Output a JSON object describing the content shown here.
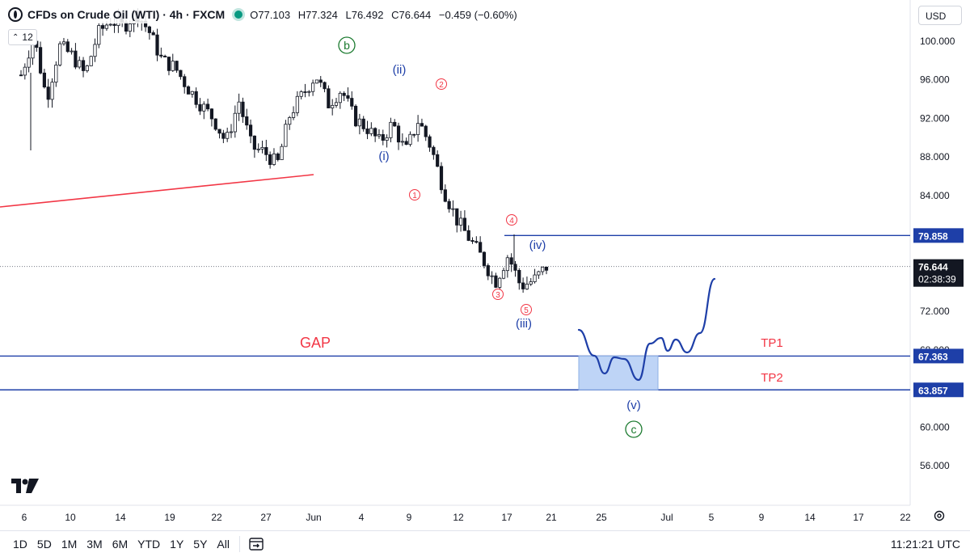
{
  "header": {
    "symbol": "CFDs on Crude Oil (WTI) · 4h · FXCM",
    "open": "O77.103",
    "high": "H77.324",
    "low": "L76.492",
    "close": "C76.644",
    "change": "−0.459 (−0.60%)",
    "indicator_value": "12"
  },
  "currency_label": "USD",
  "colors": {
    "bull": "#089981",
    "bear": "#131722",
    "blue": "#1e3fa8",
    "red": "#f23645",
    "green": "#1b7a2f",
    "zone": "#b3cdf5"
  },
  "icons": [
    "tradingview-logo-icon",
    "chevron-up-down-icon",
    "calendar-range-icon",
    "gear-icon"
  ],
  "chart_data": {
    "type": "candlestick",
    "timeframe": "4h",
    "ylim": [
      52.0,
      103.5
    ],
    "yticks": [
      "100.000",
      "96.000",
      "92.000",
      "88.000",
      "84.000",
      "72.000",
      "68.000",
      "64.000",
      "60.000",
      "56.000"
    ],
    "xticks": [
      "6",
      "10",
      "14",
      "19",
      "22",
      "27",
      "Jun",
      "4",
      "9",
      "12",
      "17",
      "21",
      "25",
      "Jul",
      "5",
      "9",
      "14",
      "17",
      "22"
    ],
    "price_labels": [
      {
        "text": "79.858",
        "price": 79.858,
        "style": "blue"
      },
      {
        "text": "76.644",
        "sub": "02:38:39",
        "price": 76.644,
        "style": "black"
      },
      {
        "text": "67.363",
        "price": 67.363,
        "style": "blue"
      },
      {
        "text": "63.857",
        "price": 63.857,
        "style": "blue"
      }
    ],
    "horizontal_levels": [
      {
        "price": 79.858,
        "color": "blue",
        "from_day": 39.0
      },
      {
        "price": 67.363,
        "color": "blue",
        "from_day": 0
      },
      {
        "price": 63.857,
        "color": "blue",
        "from_day": 0
      },
      {
        "price": 76.644,
        "color": "dotted",
        "from_day": 0
      }
    ],
    "trendline": {
      "color": "red",
      "from": [
        0,
        82.8
      ],
      "to": [
        19.5,
        86.3
      ]
    },
    "target_zone": {
      "from_day": 48.5,
      "to_day": 57.0,
      "price_top": 67.363,
      "price_bottom": 63.857
    },
    "labels": {
      "gap": "GAP",
      "tp1": "TP1",
      "tp2": "TP2",
      "waves_circled_green": [
        "b",
        "c"
      ],
      "waves_blue": [
        "(i)",
        "(ii)",
        "(iii)",
        "(iv)",
        "(v)"
      ],
      "waves_red_circled": [
        "1",
        "2",
        "3",
        "4",
        "5"
      ]
    },
    "price_path": [
      [
        0,
        96.5
      ],
      [
        1.5,
        100.5
      ],
      [
        3,
        94.0
      ],
      [
        4.5,
        99.5
      ],
      [
        6,
        98.5
      ],
      [
        7.5,
        96.5
      ],
      [
        9,
        100.8
      ],
      [
        10.5,
        102.2
      ],
      [
        12,
        101.5
      ],
      [
        13.5,
        103.0
      ],
      [
        15,
        101.0
      ],
      [
        16.5,
        98.0
      ],
      [
        18,
        97.3
      ],
      [
        19.5,
        95.2
      ],
      [
        21,
        93.5
      ],
      [
        22.5,
        92.0
      ],
      [
        24,
        89.5
      ],
      [
        25.5,
        93.8
      ],
      [
        27,
        89.0
      ],
      [
        28.5,
        88.5
      ],
      [
        30,
        87.2
      ],
      [
        31.5,
        92.5
      ],
      [
        33,
        94.5
      ],
      [
        34.5,
        96.5
      ],
      [
        36,
        93.5
      ],
      [
        37.5,
        95.0
      ],
      [
        39,
        92.0
      ],
      [
        40.5,
        91.0
      ],
      [
        42,
        89.5
      ],
      [
        43.5,
        91.5
      ],
      [
        45,
        88.5
      ],
      [
        46.5,
        91.8
      ],
      [
        48,
        89.0
      ],
      [
        49.5,
        84.5
      ],
      [
        51,
        81.5
      ],
      [
        52.5,
        79.5
      ],
      [
        54,
        77.5
      ],
      [
        55.5,
        75.0
      ],
      [
        57,
        77.8
      ],
      [
        58.5,
        74.6
      ],
      [
        60,
        75.2
      ],
      [
        61.5,
        76.6
      ]
    ],
    "projection_path": [
      [
        48.5,
        69.8
      ],
      [
        52.5,
        64.8
      ],
      [
        56.0,
        66.3
      ],
      [
        59.0,
        64.5
      ],
      [
        61.5,
        68.5
      ],
      [
        63.5,
        68.9
      ],
      [
        66.0,
        66.8
      ],
      [
        68.0,
        68.2
      ],
      [
        71.5,
        75.2
      ]
    ]
  },
  "bottom_toolbar": {
    "timeframes": [
      "1D",
      "5D",
      "1M",
      "3M",
      "6M",
      "YTD",
      "1Y",
      "5Y",
      "All"
    ],
    "clock": "11:21:21 UTC"
  }
}
